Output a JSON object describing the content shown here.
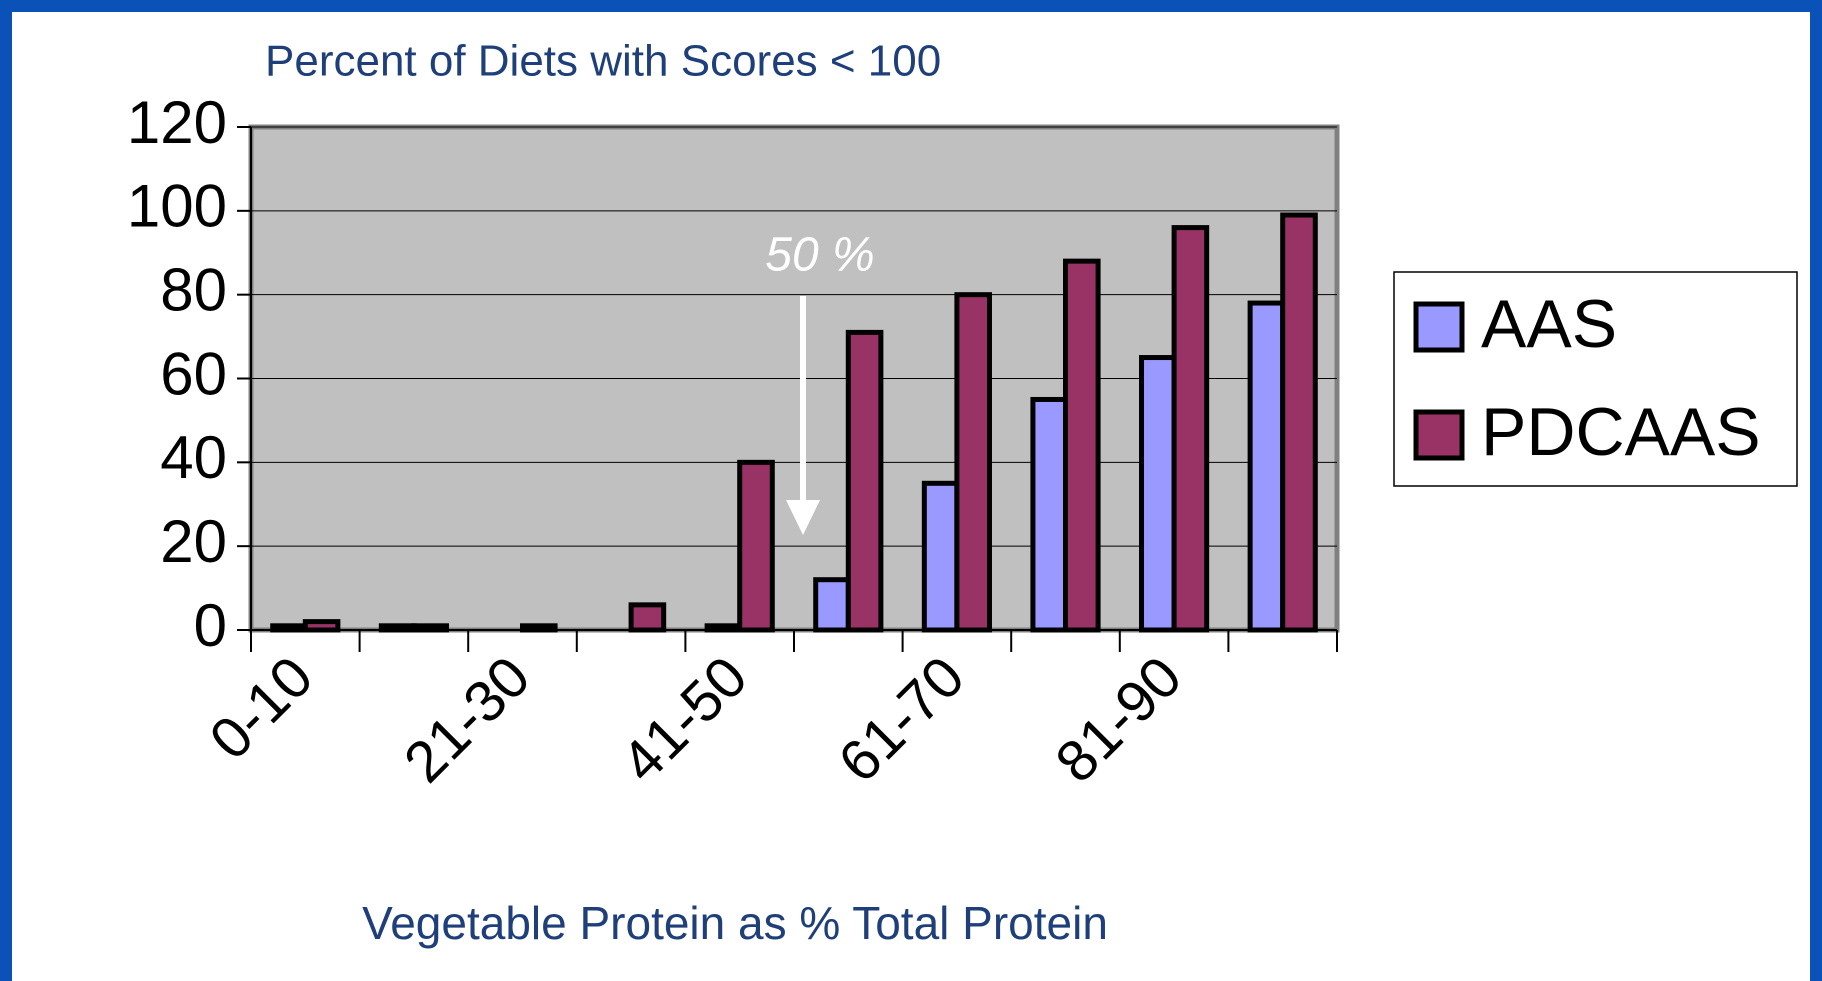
{
  "chart_data": {
    "type": "bar",
    "title": "Percent of Diets with Scores < 100",
    "x_label": "Vegetable Protein as % Total Protein",
    "annotation": "50 %",
    "categories": [
      "0-10",
      null,
      "21-30",
      null,
      "41-50",
      null,
      "61-70",
      null,
      "81-90",
      null
    ],
    "series": [
      {
        "name": "AAS",
        "color": "#9999ff",
        "values": [
          1,
          1,
          0,
          0,
          1,
          12,
          35,
          55,
          65,
          78
        ]
      },
      {
        "name": "PDCAAS",
        "color": "#993366",
        "values": [
          2,
          1,
          1,
          6,
          40,
          71,
          80,
          88,
          96,
          99
        ]
      }
    ],
    "ylim": [
      0,
      120
    ],
    "yticks": [
      0,
      20,
      40,
      60,
      80,
      100,
      120
    ],
    "grid": true,
    "legend": "right"
  }
}
